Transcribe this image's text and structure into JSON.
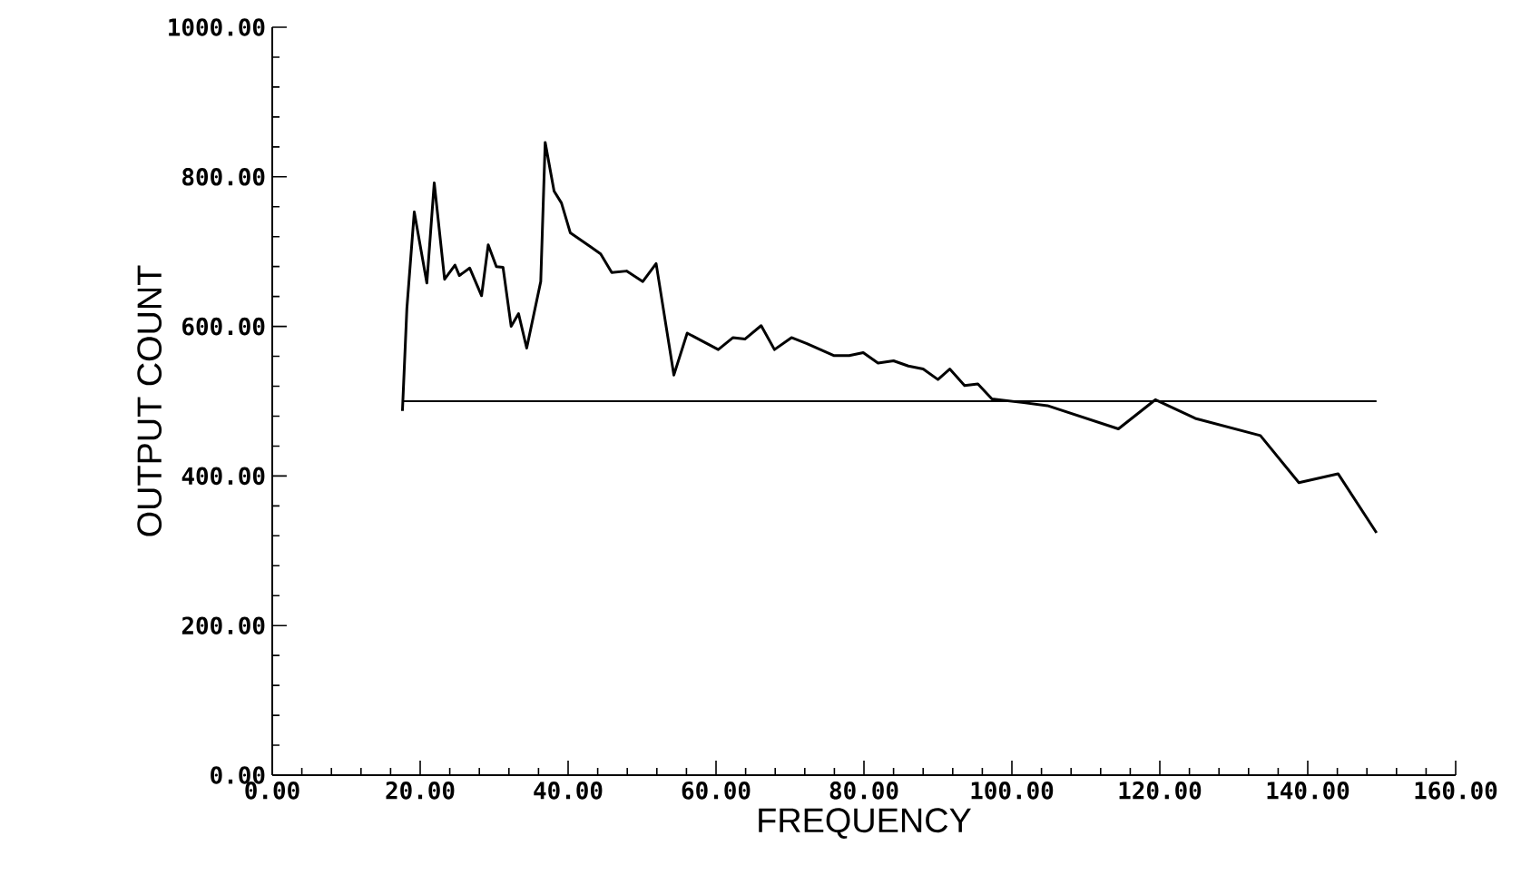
{
  "chart_data": {
    "type": "line",
    "xlabel": "FREQUENCY",
    "ylabel": "OUTPUT COUNT",
    "xlim": [
      0,
      160
    ],
    "ylim": [
      0,
      1000
    ],
    "xticks": [
      {
        "value": 0,
        "label": "0.00"
      },
      {
        "value": 20,
        "label": "20.00"
      },
      {
        "value": 40,
        "label": "40.00"
      },
      {
        "value": 60,
        "label": "60.00"
      },
      {
        "value": 80,
        "label": "80.00"
      },
      {
        "value": 100,
        "label": "100.00"
      },
      {
        "value": 120,
        "label": "120.00"
      },
      {
        "value": 140,
        "label": "140.00"
      },
      {
        "value": 160,
        "label": "160.00"
      }
    ],
    "yticks": [
      {
        "value": 0,
        "label": "0.00"
      },
      {
        "value": 200,
        "label": "200.00"
      },
      {
        "value": 400,
        "label": "400.00"
      },
      {
        "value": 600,
        "label": "600.00"
      },
      {
        "value": 800,
        "label": "800.00"
      },
      {
        "value": 1000,
        "label": "1000.00"
      }
    ],
    "grid": false,
    "marker": "none",
    "line_style": "solid",
    "ref_lines": [
      {
        "axis": "y",
        "value": 500,
        "color": "#000000"
      }
    ],
    "series": [
      {
        "color": "#000000",
        "x": [
          17.6,
          18.2,
          19.2,
          20.9,
          21.9,
          23.3,
          24.7,
          25.3,
          26.7,
          28.3,
          29.2,
          30.3,
          31.2,
          32.3,
          33.3,
          34.4,
          36.3,
          36.9,
          38.1,
          39.1,
          40.3,
          43.1,
          44.4,
          45.9,
          47.9,
          50.1,
          51.9,
          54.3,
          56.1,
          60.3,
          62.3,
          63.9,
          66.1,
          67.9,
          70.2,
          72.3,
          75.9,
          78.0,
          79.9,
          81.9,
          84.0,
          86.0,
          88.0,
          90.0,
          91.6,
          93.6,
          95.4,
          97.3,
          101.6,
          104.8,
          114.4,
          119.4,
          124.8,
          133.6,
          138.8,
          144.1,
          149.3
        ],
        "values": [
          487,
          624,
          753,
          658,
          792,
          663,
          682,
          668,
          678,
          641,
          709,
          680,
          679,
          600,
          617,
          571,
          660,
          846,
          781,
          765,
          725,
          706,
          697,
          672,
          674,
          660,
          684,
          535,
          591,
          569,
          585,
          583,
          601,
          569,
          585,
          577,
          561,
          561,
          565,
          551,
          554,
          547,
          543,
          529,
          543,
          521,
          523,
          503,
          498,
          494,
          463,
          502,
          477,
          454,
          391,
          403,
          324
        ]
      }
    ]
  }
}
